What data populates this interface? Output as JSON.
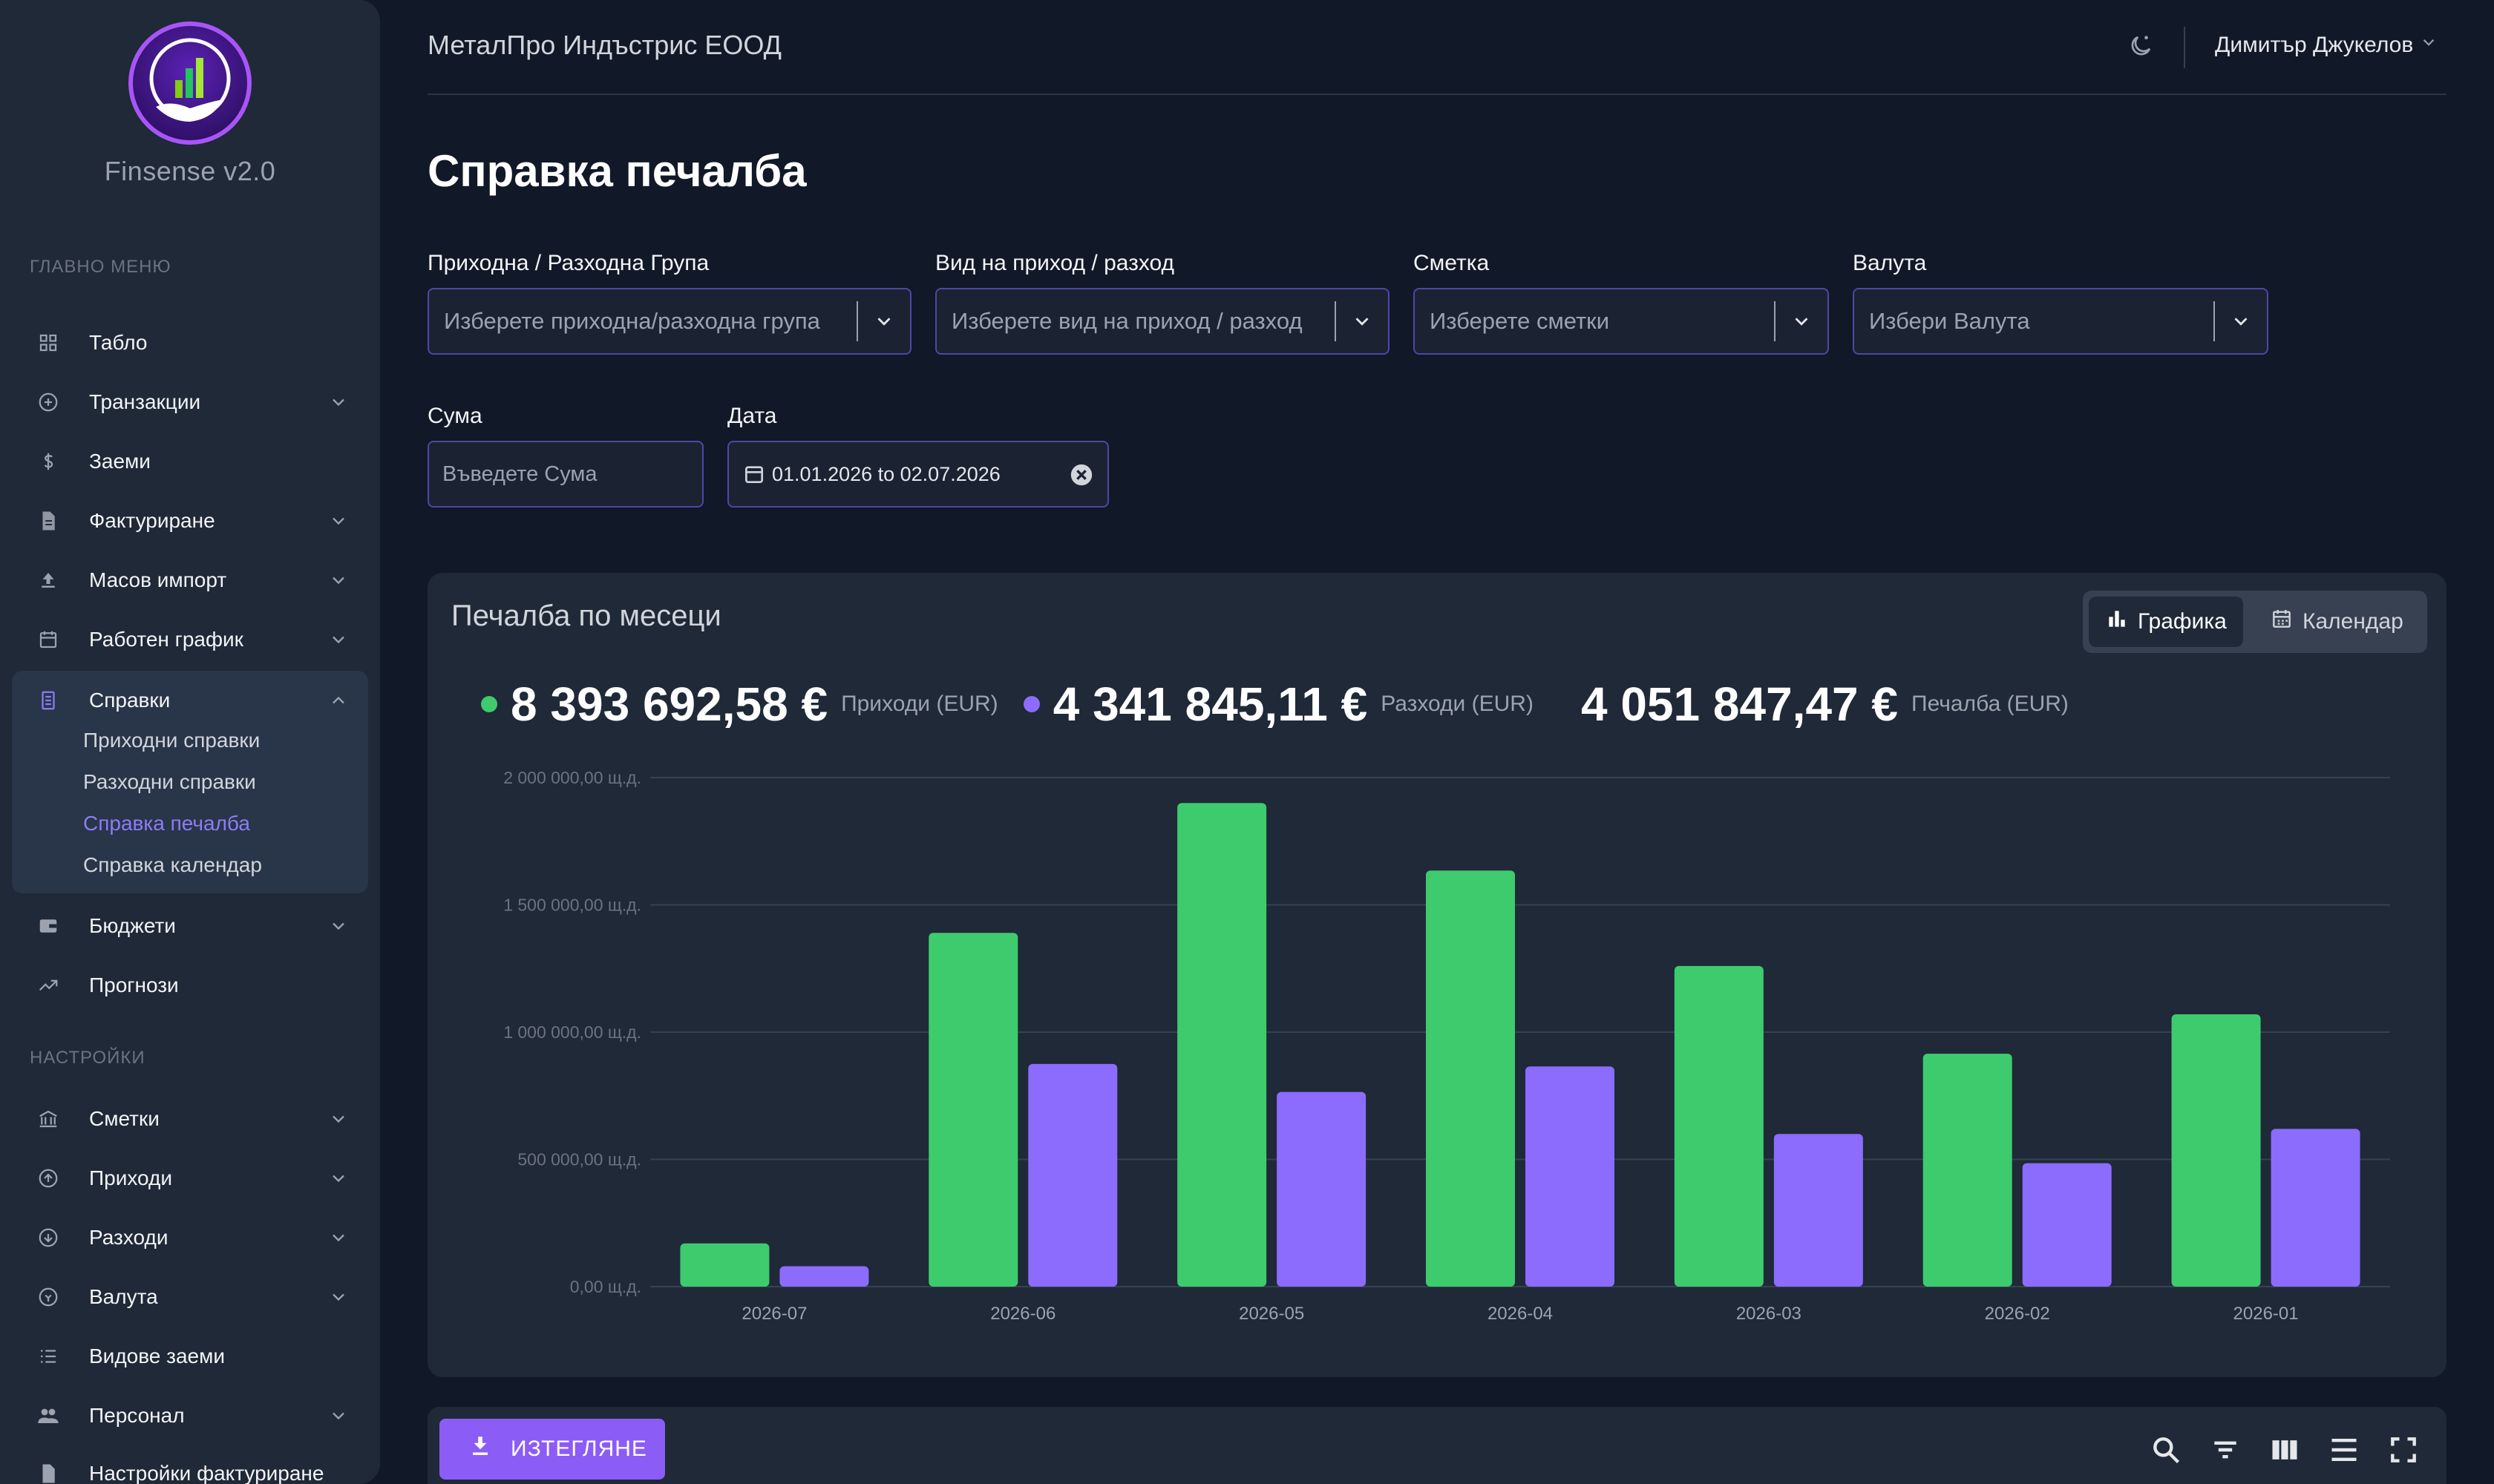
{
  "app": {
    "brand": "Finsense v2.0"
  },
  "header": {
    "company": "МеталПро Индъстрис ЕООД",
    "user": "Димитър Джукелов"
  },
  "sidebar": {
    "main_title": "ГЛАВНО МЕНЮ",
    "settings_title": "НАСТРОЙКИ",
    "items": [
      {
        "label": "Табло",
        "icon": "grid-icon"
      },
      {
        "label": "Транзакции",
        "icon": "plus-circle-icon"
      },
      {
        "label": "Заеми",
        "icon": "dollar-icon"
      },
      {
        "label": "Фактуриране",
        "icon": "document-icon"
      },
      {
        "label": "Масов импорт",
        "icon": "upload-icon"
      },
      {
        "label": "Работен график",
        "icon": "calendar-icon"
      },
      {
        "label": "Справки",
        "icon": "report-icon"
      },
      {
        "label": "Бюджети",
        "icon": "wallet-icon"
      },
      {
        "label": "Прогнози",
        "icon": "trend-icon"
      }
    ],
    "reports_sub": [
      "Приходни справки",
      "Разходни справки",
      "Справка печалба",
      "Справка календар"
    ],
    "settings_items": [
      {
        "label": "Сметки",
        "icon": "bank-icon"
      },
      {
        "label": "Приходи",
        "icon": "arrow-up-circle-icon"
      },
      {
        "label": "Разходи",
        "icon": "arrow-down-circle-icon"
      },
      {
        "label": "Валута",
        "icon": "currency-icon"
      },
      {
        "label": "Видове заеми",
        "icon": "list-icon"
      },
      {
        "label": "Персонал",
        "icon": "people-icon"
      },
      {
        "label": "Настройки фактуриране",
        "icon": "document-icon"
      }
    ]
  },
  "page": {
    "title": "Справка печалба"
  },
  "filters": {
    "group_label": "Приходна / Разходна Група",
    "group_placeholder": "Изберете приходна/разходна група",
    "type_label": "Вид на приход / разход",
    "type_placeholder": "Изберете вид на приход / разход",
    "account_label": "Сметка",
    "account_placeholder": "Изберете сметки",
    "currency_label": "Валута",
    "currency_placeholder": "Избери Валута",
    "amount_label": "Сума",
    "amount_placeholder": "Въведете Сума",
    "date_label": "Дата",
    "date_value": "01.01.2026 to 02.07.2026"
  },
  "card": {
    "title": "Печалба по месеци",
    "toggle_chart": "Графика",
    "toggle_calendar": "Календар",
    "income_total": "8 393 692,58 €",
    "income_label": "Приходи (EUR)",
    "expense_total": "4 341 845,11 €",
    "expense_label": "Разходи (EUR)",
    "profit_total": "4 051 847,47 €",
    "profit_label": "Печалба (EUR)"
  },
  "colors": {
    "income": "#3ecb6e",
    "expense": "#8b6cfc",
    "accent": "#8b5cf6"
  },
  "chart_data": {
    "type": "bar",
    "categories": [
      "2026-07",
      "2026-06",
      "2026-05",
      "2026-04",
      "2026-03",
      "2026-02",
      "2026-01"
    ],
    "series": [
      {
        "name": "Приходи (EUR)",
        "values": [
          170000,
          1390000,
          1900000,
          1635000,
          1260000,
          915000,
          1070000
        ]
      },
      {
        "name": "Разходи (EUR)",
        "values": [
          80000,
          875000,
          765000,
          865000,
          600000,
          485000,
          620000
        ]
      }
    ],
    "yticks": [
      "0,00 щ.д.",
      "500 000,00 щ.д.",
      "1 000 000,00 щ.д.",
      "1 500 000,00 щ.д.",
      "2 000 000,00 щ.д."
    ],
    "ylim": [
      0,
      2000000
    ],
    "grid": true
  },
  "toolbar": {
    "export_label": "ИЗТЕГЛЯНЕ"
  }
}
